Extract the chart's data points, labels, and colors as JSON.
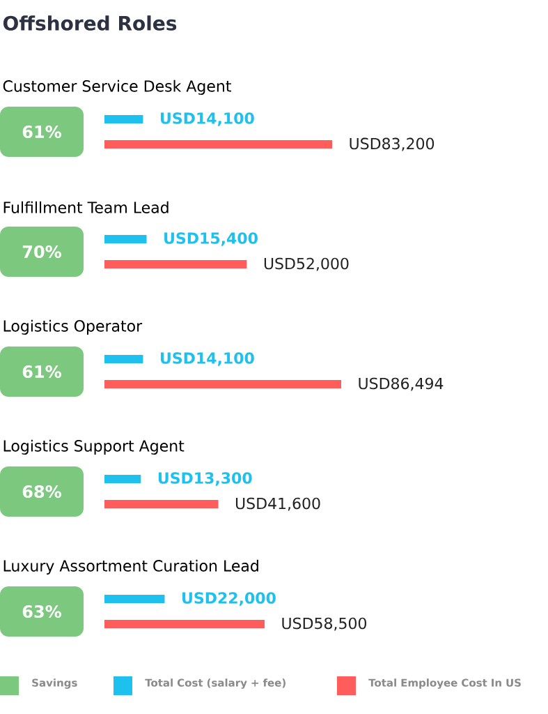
{
  "chart_data": {
    "type": "bar",
    "orientation": "horizontal",
    "title": "Offshored Roles",
    "legend": "bottom",
    "categories": [
      "Customer Service Desk Agent",
      "Fulfillment Team Lead",
      "Logistics Operator",
      "Logistics Support Agent",
      "Luxury Assortment Curation Lead"
    ],
    "annotations": [
      "61%",
      "70%",
      "61%",
      "68%",
      "63%"
    ],
    "series": [
      {
        "name": "Savings",
        "type": "other",
        "color": "#7cc87f",
        "values": [
          null,
          null,
          null,
          null,
          null
        ]
      },
      {
        "name": "Total Cost (salary + fee)",
        "color": "#1ec0ee",
        "values": [
          14100,
          15400,
          14100,
          13300,
          22000
        ],
        "value_labels": [
          "USD14,100",
          "USD15,400",
          "USD14,100",
          "USD13,300",
          "USD22,000"
        ]
      },
      {
        "name": "Total Employee Cost In US",
        "color": "#ff5c5c",
        "values": [
          83200,
          52000,
          86494,
          41600,
          58500
        ],
        "value_labels": [
          "USD83,200",
          "USD52,000",
          "USD86,494",
          "USD41,600",
          "USD58,500"
        ]
      }
    ]
  }
}
